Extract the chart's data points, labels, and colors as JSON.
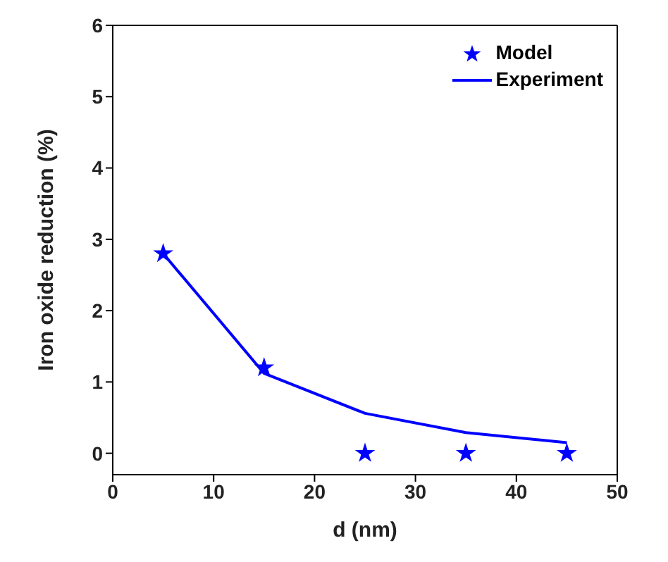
{
  "chart_data": {
    "type": "line",
    "xlabel": "d (nm)",
    "ylabel": "Iron oxide reduction (%)",
    "x": [
      5,
      15,
      25,
      35,
      45
    ],
    "series": [
      {
        "name": "Model",
        "type": "scatter",
        "marker": "star",
        "color": "#0000ff",
        "values": [
          2.8,
          1.2,
          0,
          0,
          0
        ]
      },
      {
        "name": "Experiment",
        "marker": "none",
        "line_style": "solid",
        "color": "#0000ff",
        "values": [
          2.8,
          1.12,
          0.56,
          0.29,
          0.15
        ]
      }
    ],
    "xlim": [
      0,
      50
    ],
    "xticks": [
      0,
      10,
      20,
      30,
      40,
      50
    ],
    "ylim": [
      -0.3,
      6
    ],
    "yticks": [
      0,
      1,
      2,
      3,
      4,
      5,
      6
    ],
    "grid": false,
    "legend": "top right"
  }
}
